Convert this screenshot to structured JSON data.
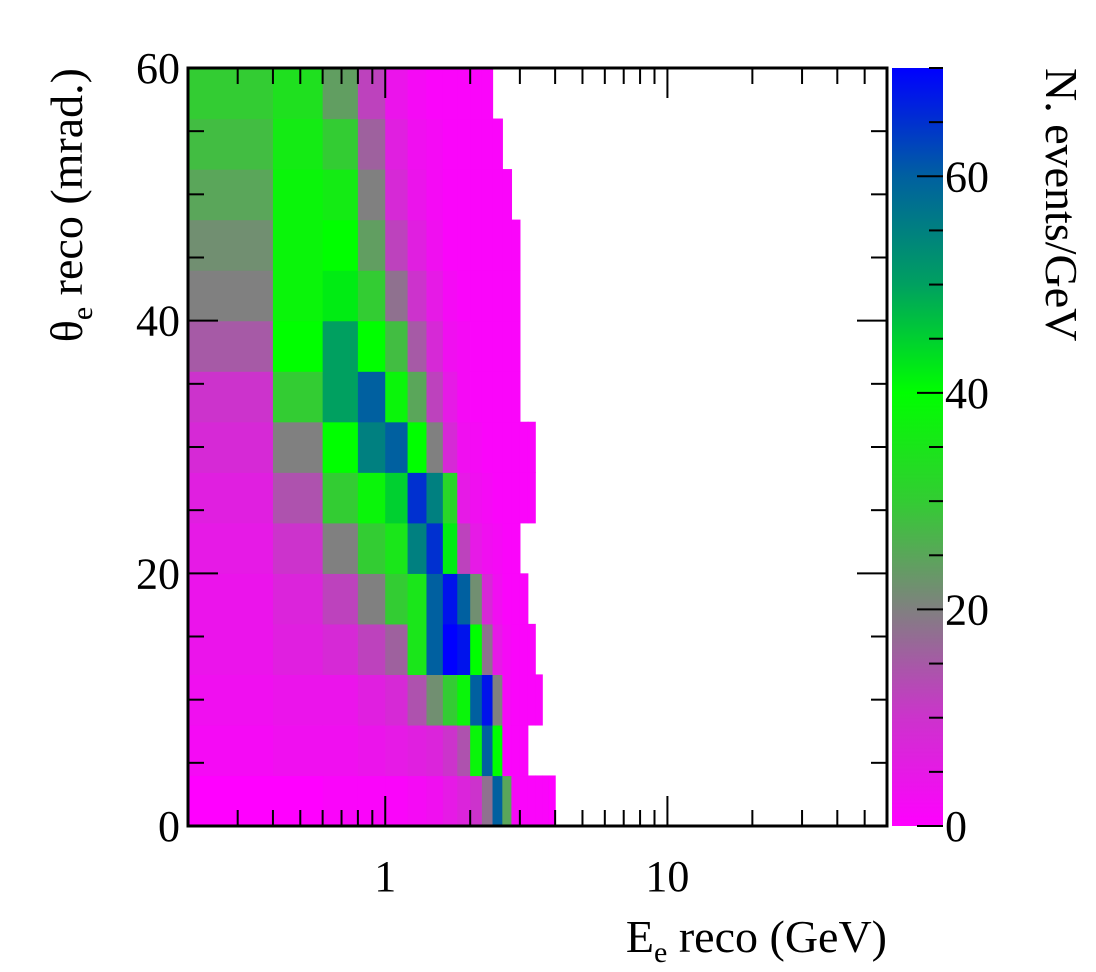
{
  "chart_data": {
    "type": "heatmap",
    "xlabel": {
      "main": "E",
      "sub": "e",
      "rest": " reco (GeV)"
    },
    "ylabel": {
      "main": "θ",
      "sub": "e",
      "rest": " reco (mrad.)"
    },
    "zlabel": "N. events/GeV",
    "x_scale": "log",
    "xlim": [
      0.2,
      60
    ],
    "ylim": [
      0,
      60
    ],
    "zlim": [
      0,
      70
    ],
    "x_ticks": [
      {
        "value": 1,
        "label": "1"
      },
      {
        "value": 10,
        "label": "10"
      }
    ],
    "y_ticks": [
      {
        "value": 0,
        "label": "0"
      },
      {
        "value": 20,
        "label": "20"
      },
      {
        "value": 40,
        "label": "40"
      },
      {
        "value": 60,
        "label": "60"
      }
    ],
    "z_ticks": [
      {
        "value": 0,
        "label": "0"
      },
      {
        "value": 20,
        "label": "20"
      },
      {
        "value": 40,
        "label": "40"
      },
      {
        "value": 60,
        "label": "60"
      }
    ],
    "colormap": [
      {
        "z": 0,
        "color": "#ff00ff"
      },
      {
        "z": 10,
        "color": "#cc33cc"
      },
      {
        "z": 20,
        "color": "#808080"
      },
      {
        "z": 30,
        "color": "#33cc33"
      },
      {
        "z": 40,
        "color": "#00ff00"
      },
      {
        "z": 50,
        "color": "#00a060"
      },
      {
        "z": 60,
        "color": "#0060a0"
      },
      {
        "z": 70,
        "color": "#0000ff"
      }
    ],
    "x_edges": [
      0.2,
      0.4,
      0.6,
      0.8,
      1.0,
      1.2,
      1.4,
      1.6,
      1.8,
      2.0,
      2.2,
      2.4,
      2.6,
      2.8,
      3.0,
      3.2,
      3.4,
      3.6,
      3.8,
      4.0
    ],
    "y_edges": [
      0,
      4,
      8,
      12,
      16,
      20,
      24,
      28,
      32,
      36,
      40,
      44,
      48,
      52,
      56,
      60
    ],
    "z_rows_bottom_to_top": [
      [
        0,
        0,
        1,
        1,
        1,
        2,
        3,
        5,
        7,
        10,
        18,
        60,
        25,
        2,
        1,
        1,
        1,
        1,
        0
      ],
      [
        2,
        3,
        3,
        4,
        5,
        6,
        7,
        10,
        14,
        38,
        60,
        40,
        1,
        1,
        1,
        null,
        null,
        null,
        null
      ],
      [
        3,
        4,
        4,
        6,
        8,
        14,
        22,
        30,
        38,
        60,
        68,
        20,
        2,
        1,
        1,
        1,
        1,
        null,
        null
      ],
      [
        4,
        6,
        8,
        12,
        16,
        35,
        60,
        70,
        68,
        40,
        18,
        5,
        2,
        1,
        1,
        1,
        null,
        null,
        null
      ],
      [
        4,
        7,
        12,
        20,
        30,
        35,
        60,
        68,
        60,
        22,
        8,
        3,
        1,
        1,
        1,
        null,
        null,
        null,
        null
      ],
      [
        5,
        10,
        20,
        30,
        35,
        55,
        65,
        42,
        12,
        5,
        3,
        2,
        1,
        1,
        null,
        null,
        null,
        null,
        null
      ],
      [
        6,
        14,
        30,
        38,
        45,
        65,
        55,
        32,
        5,
        3,
        2,
        1,
        1,
        1,
        1,
        1,
        null,
        null,
        null
      ],
      [
        8,
        20,
        40,
        55,
        60,
        40,
        20,
        8,
        3,
        2,
        1,
        1,
        1,
        1,
        1,
        1,
        null,
        null,
        null
      ],
      [
        10,
        30,
        50,
        60,
        38,
        25,
        12,
        5,
        2,
        1,
        1,
        1,
        1,
        1,
        null,
        null,
        null,
        null,
        null
      ],
      [
        15,
        40,
        50,
        40,
        28,
        15,
        8,
        3,
        2,
        1,
        1,
        1,
        1,
        1,
        null,
        null,
        null,
        null,
        null
      ],
      [
        20,
        38,
        42,
        30,
        18,
        10,
        5,
        2,
        1,
        1,
        1,
        1,
        1,
        1,
        null,
        null,
        null,
        null,
        null
      ],
      [
        22,
        38,
        40,
        24,
        12,
        6,
        3,
        1,
        1,
        1,
        1,
        1,
        1,
        1,
        null,
        null,
        null,
        null,
        null
      ],
      [
        25,
        38,
        36,
        20,
        8,
        4,
        2,
        1,
        1,
        1,
        1,
        1,
        1,
        null,
        null,
        null,
        null,
        null,
        null
      ],
      [
        28,
        36,
        30,
        16,
        6,
        3,
        2,
        1,
        1,
        1,
        1,
        1,
        null,
        null,
        null,
        null,
        null,
        null,
        null
      ],
      [
        30,
        34,
        24,
        12,
        4,
        2,
        1,
        1,
        1,
        1,
        1,
        null,
        null,
        null,
        null,
        null,
        null,
        null,
        null
      ]
    ]
  }
}
